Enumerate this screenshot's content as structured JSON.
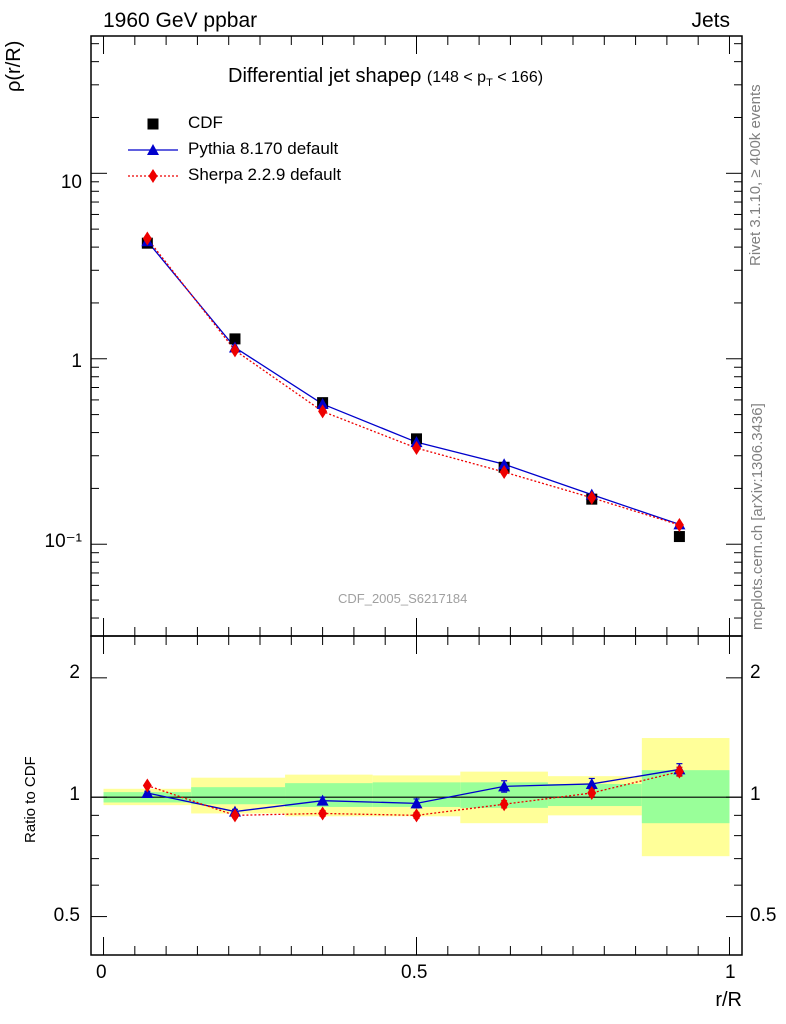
{
  "header": {
    "energy_label": "1960 GeV ppbar",
    "process_label": "Jets",
    "side_label_top": "Rivet 3.1.10, ≥ 400k events",
    "side_label_bottom": "mcplots.cern.ch [arXiv:1306.3436]",
    "watermark": "CDF_2005_S6217184"
  },
  "legend": {
    "position": "top-left",
    "entries": [
      {
        "label": "CDF",
        "marker": "square",
        "color": "#000000"
      },
      {
        "label": "Pythia 8.170 default",
        "marker": "triangle",
        "color": "#0000cc"
      },
      {
        "label": "Sherpa 2.2.9 default",
        "marker": "diamond",
        "color": "#ee0000"
      }
    ]
  },
  "chart_data": [
    {
      "type": "line",
      "title": "Differential jet shapeρ (148 < p_T < 166)",
      "title_main": "Differential jet shapeρ",
      "title_range": "(148 < p",
      "title_sub": "T",
      "title_end": " < 166)",
      "ylabel": "ρ(r/R)",
      "xlabel": "",
      "y_scale": "log",
      "ylim": [
        0.032,
        55
      ],
      "xlim": [
        -0.02,
        1.02
      ],
      "y_ticks": [
        {
          "value": 10,
          "label": "10"
        },
        {
          "value": 1,
          "label": "1"
        },
        {
          "value": 0.1,
          "label": "10⁻¹"
        }
      ],
      "x": [
        0.07,
        0.21,
        0.35,
        0.5,
        0.64,
        0.78,
        0.92
      ],
      "series": [
        {
          "name": "CDF",
          "values": [
            4.2,
            1.28,
            0.58,
            0.37,
            0.26,
            0.175,
            0.11
          ],
          "color": "#000000"
        },
        {
          "name": "Pythia 8.170 default",
          "values": [
            4.3,
            1.15,
            0.57,
            0.355,
            0.27,
            0.185,
            0.128
          ],
          "color": "#0000cc"
        },
        {
          "name": "Sherpa 2.2.9 default",
          "values": [
            4.45,
            1.11,
            0.52,
            0.33,
            0.245,
            0.178,
            0.127
          ],
          "color": "#ee0000"
        }
      ]
    },
    {
      "type": "line",
      "title": "",
      "ylabel": "Ratio to CDF",
      "xlabel": "r/R",
      "y_scale": "log",
      "ylim": [
        0.4,
        2.55
      ],
      "xlim": [
        -0.02,
        1.02
      ],
      "x_ticks": [
        {
          "value": 0,
          "label": "0"
        },
        {
          "value": 0.5,
          "label": "0.5"
        },
        {
          "value": 1,
          "label": "1"
        }
      ],
      "y_ticks": [
        {
          "value": 2,
          "label": "2"
        },
        {
          "value": 1,
          "label": "1"
        },
        {
          "value": 0.5,
          "label": "0.5"
        }
      ],
      "bands": [
        {
          "x0": 0.0,
          "x1": 0.14,
          "green": [
            0.97,
            1.03
          ],
          "yellow": [
            0.955,
            1.05
          ]
        },
        {
          "x0": 0.14,
          "x1": 0.29,
          "green": [
            0.96,
            1.06
          ],
          "yellow": [
            0.91,
            1.12
          ]
        },
        {
          "x0": 0.29,
          "x1": 0.43,
          "green": [
            0.945,
            1.085
          ],
          "yellow": [
            0.895,
            1.14
          ]
        },
        {
          "x0": 0.43,
          "x1": 0.57,
          "green": [
            0.945,
            1.09
          ],
          "yellow": [
            0.895,
            1.135
          ]
        },
        {
          "x0": 0.57,
          "x1": 0.71,
          "green": [
            0.94,
            1.09
          ],
          "yellow": [
            0.86,
            1.16
          ]
        },
        {
          "x0": 0.71,
          "x1": 0.86,
          "green": [
            0.95,
            1.08
          ],
          "yellow": [
            0.9,
            1.13
          ]
        },
        {
          "x0": 0.86,
          "x1": 1.0,
          "green": [
            0.86,
            1.17
          ],
          "yellow": [
            0.71,
            1.41
          ]
        }
      ],
      "x": [
        0.07,
        0.21,
        0.35,
        0.5,
        0.64,
        0.78,
        0.92
      ],
      "series": [
        {
          "name": "Pythia 8.170 default",
          "values": [
            1.025,
            0.92,
            0.98,
            0.965,
            1.065,
            1.08,
            1.175
          ],
          "errors": [
            0.01,
            0.012,
            0.02,
            0.025,
            0.035,
            0.035,
            0.04
          ],
          "color": "#0000cc"
        },
        {
          "name": "Sherpa 2.2.9 default",
          "values": [
            1.07,
            0.9,
            0.91,
            0.9,
            0.96,
            1.025,
            1.16
          ],
          "errors": [
            0.01,
            0.012,
            0.015,
            0.015,
            0.02,
            0.02,
            0.03
          ],
          "color": "#ee0000"
        }
      ]
    }
  ]
}
